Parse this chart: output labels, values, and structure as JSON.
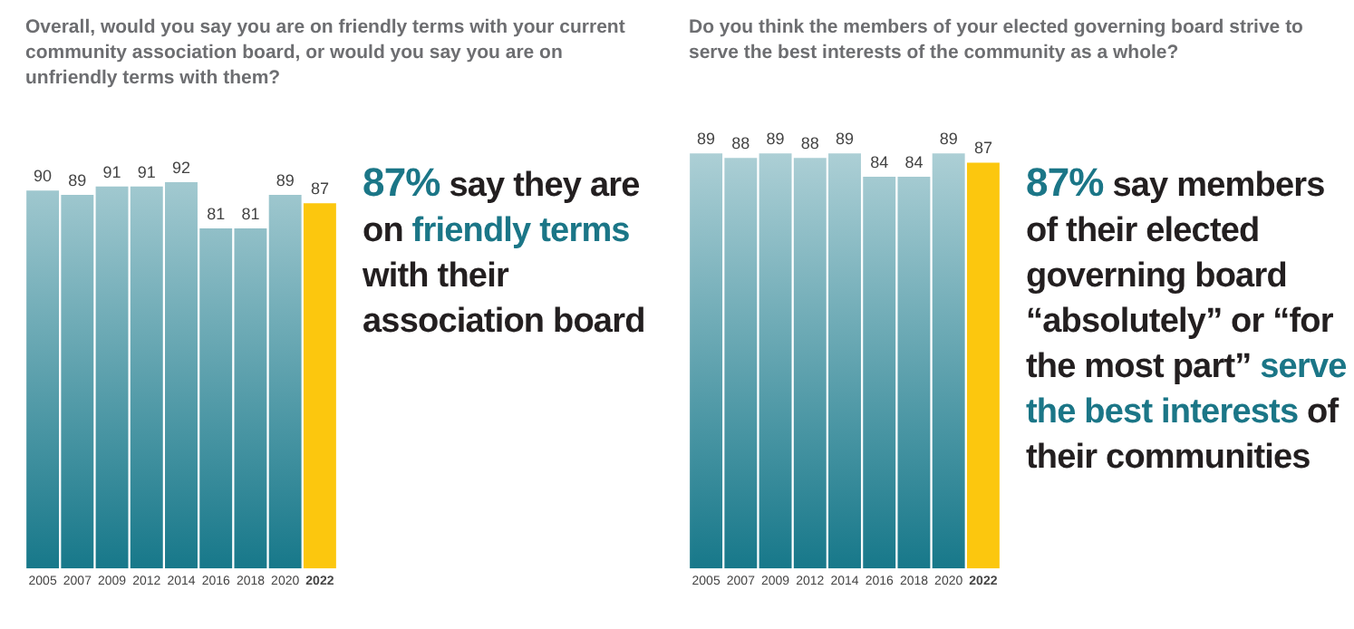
{
  "chart_data": [
    {
      "type": "bar",
      "title": "Overall, would you say you are on friendly terms with your current community association board, or would you say you are on unfriendly terms with them?",
      "categories": [
        "2005",
        "2007",
        "2009",
        "2012",
        "2014",
        "2016",
        "2018",
        "2020",
        "2022"
      ],
      "values": [
        90,
        89,
        91,
        91,
        92,
        81,
        81,
        89,
        87
      ],
      "color": "#17788a",
      "colors": [
        "#17788a",
        "#17788a",
        "#17788a",
        "#17788a",
        "#17788a",
        "#17788a",
        "#17788a",
        "#17788a",
        "#fcc70e"
      ],
      "data_labels": true
    },
    {
      "type": "other",
      "annotations": [
        "87%",
        " say they are on ",
        "friendly terms",
        " with their association board"
      ]
    },
    {
      "type": "bar",
      "title": "Do you think the members of your elected governing board strive to serve the best interests of the community as a whole?",
      "categories": [
        "2005",
        "2007",
        "2009",
        "2012",
        "2014",
        "2016",
        "2018",
        "2020",
        "2022"
      ],
      "values": [
        89,
        88,
        89,
        88,
        89,
        84,
        84,
        89,
        87
      ],
      "color": "#17788a",
      "colors": [
        "#17788a",
        "#17788a",
        "#17788a",
        "#17788a",
        "#17788a",
        "#17788a",
        "#17788a",
        "#17788a",
        "#fcc70e"
      ],
      "data_labels": true
    },
    {
      "type": "other",
      "annotations": [
        "87%",
        " say members of their elected governing board “absolutely” or “for the most part” ",
        "serve the best interests",
        " of their communities"
      ]
    }
  ]
}
